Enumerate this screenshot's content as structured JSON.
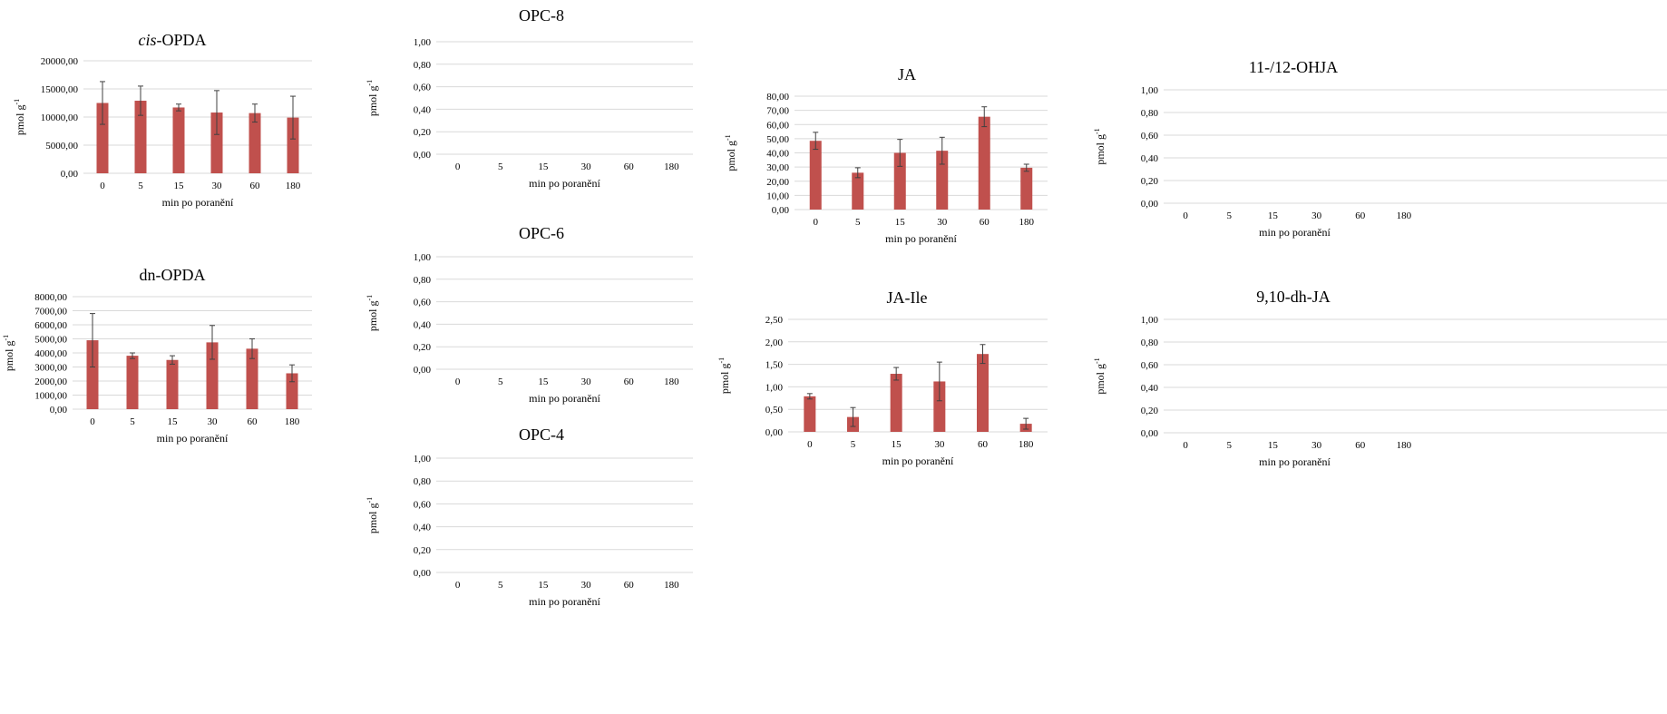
{
  "colors": {
    "bar": "#c0504d",
    "grid": "#d9d9d9",
    "error": "#404040"
  },
  "chart_data": [
    {
      "id": "cis-opda",
      "type": "bar",
      "title_italic": "cis",
      "title": "-OPDA",
      "categories": [
        "0",
        "5",
        "15",
        "30",
        "60",
        "180"
      ],
      "values": [
        12500,
        12900,
        11700,
        10800,
        10700,
        9900
      ],
      "errors": [
        3800,
        2600,
        600,
        3900,
        1600,
        3800
      ],
      "ylim": [
        0,
        20000
      ],
      "ytick_values": [
        0,
        5000,
        10000,
        15000,
        20000
      ],
      "yticks": [
        "0,00",
        "5000,00",
        "10000,00",
        "15000,00",
        "20000,00"
      ],
      "xlabel": "min po poranění",
      "ylabel_base": "pmol g",
      "ylabel_sup": "-1",
      "grid": true
    },
    {
      "id": "dn-opda",
      "type": "bar",
      "title": "dn-OPDA",
      "categories": [
        "0",
        "5",
        "15",
        "30",
        "60",
        "180"
      ],
      "values": [
        4900,
        3800,
        3500,
        4750,
        4300,
        2550
      ],
      "errors": [
        1900,
        200,
        300,
        1200,
        700,
        600
      ],
      "ylim": [
        0,
        8000
      ],
      "ytick_values": [
        0,
        1000,
        2000,
        3000,
        4000,
        5000,
        6000,
        7000,
        8000
      ],
      "yticks": [
        "0,00",
        "1000,00",
        "2000,00",
        "3000,00",
        "4000,00",
        "5000,00",
        "6000,00",
        "7000,00",
        "8000,00"
      ],
      "xlabel": "min po poranění",
      "ylabel_base": "pmol g",
      "ylabel_sup": "-1",
      "grid": true
    },
    {
      "id": "opc-8",
      "type": "bar",
      "title": "OPC-8",
      "categories": [
        "0",
        "5",
        "15",
        "30",
        "60",
        "180"
      ],
      "values": [
        0,
        0,
        0,
        0,
        0,
        0
      ],
      "ylim": [
        0,
        1
      ],
      "ytick_values": [
        0,
        0.2,
        0.4,
        0.6,
        0.8,
        1
      ],
      "yticks": [
        "0,00",
        "0,20",
        "0,40",
        "0,60",
        "0,80",
        "1,00"
      ],
      "xlabel": "min po poranění",
      "ylabel_base": "pmol g",
      "ylabel_sup": "-1",
      "grid": true
    },
    {
      "id": "opc-6",
      "type": "bar",
      "title": "OPC-6",
      "categories": [
        "0",
        "5",
        "15",
        "30",
        "60",
        "180"
      ],
      "values": [
        0,
        0,
        0,
        0,
        0,
        0
      ],
      "ylim": [
        0,
        1
      ],
      "ytick_values": [
        0,
        0.2,
        0.4,
        0.6,
        0.8,
        1
      ],
      "yticks": [
        "0,00",
        "0,20",
        "0,40",
        "0,60",
        "0,80",
        "1,00"
      ],
      "xlabel": "min po poranění",
      "ylabel_base": "pmol g",
      "ylabel_sup": "-1",
      "grid": true
    },
    {
      "id": "opc-4",
      "type": "bar",
      "title": "OPC-4",
      "categories": [
        "0",
        "5",
        "15",
        "30",
        "60",
        "180"
      ],
      "values": [
        0,
        0,
        0,
        0,
        0,
        0
      ],
      "ylim": [
        0,
        1
      ],
      "ytick_values": [
        0,
        0.2,
        0.4,
        0.6,
        0.8,
        1
      ],
      "yticks": [
        "0,00",
        "0,20",
        "0,40",
        "0,60",
        "0,80",
        "1,00"
      ],
      "xlabel": "min po poranění",
      "ylabel_base": "pmol g",
      "ylabel_sup": "-1",
      "grid": true
    },
    {
      "id": "ja",
      "type": "bar",
      "title": "JA",
      "categories": [
        "0",
        "5",
        "15",
        "30",
        "60",
        "180"
      ],
      "values": [
        48.5,
        26,
        40,
        41.5,
        65.5,
        29.5
      ],
      "errors": [
        6,
        3.5,
        9.5,
        9.5,
        7,
        2.5
      ],
      "ylim": [
        0,
        80
      ],
      "ytick_values": [
        0,
        10,
        20,
        30,
        40,
        50,
        60,
        70,
        80
      ],
      "yticks": [
        "0,00",
        "10,00",
        "20,00",
        "30,00",
        "40,00",
        "50,00",
        "60,00",
        "70,00",
        "80,00"
      ],
      "xlabel": "min po poranění",
      "ylabel_base": "pmol g",
      "ylabel_sup": "-1",
      "grid": true
    },
    {
      "id": "ja-ile",
      "type": "bar",
      "title": "JA-Ile",
      "categories": [
        "0",
        "5",
        "15",
        "30",
        "60",
        "180"
      ],
      "values": [
        0.79,
        0.33,
        1.29,
        1.12,
        1.73,
        0.18
      ],
      "errors": [
        0.06,
        0.21,
        0.14,
        0.43,
        0.21,
        0.12
      ],
      "ylim": [
        0,
        2.5
      ],
      "ytick_values": [
        0,
        0.5,
        1,
        1.5,
        2,
        2.5
      ],
      "yticks": [
        "0,00",
        "0,50",
        "1,00",
        "1,50",
        "2,00",
        "2,50"
      ],
      "xlabel": "min po poranění",
      "ylabel_base": "pmol g",
      "ylabel_sup": "-1",
      "grid": true
    },
    {
      "id": "ohja",
      "type": "bar",
      "title": "11-/12-OHJA",
      "categories": [
        "0",
        "5",
        "15",
        "30",
        "60",
        "180"
      ],
      "values": [
        0,
        0,
        0,
        0,
        0,
        0
      ],
      "ylim": [
        0,
        1
      ],
      "ytick_values": [
        0,
        0.2,
        0.4,
        0.6,
        0.8,
        1
      ],
      "yticks": [
        "0,00",
        "0,20",
        "0,40",
        "0,60",
        "0,80",
        "1,00"
      ],
      "xlabel": "min po poranění",
      "ylabel_base": "pmol g",
      "ylabel_sup": "-1",
      "grid": true
    },
    {
      "id": "dh-ja",
      "type": "bar",
      "title": "9,10-dh-JA",
      "categories": [
        "0",
        "5",
        "15",
        "30",
        "60",
        "180"
      ],
      "values": [
        0,
        0,
        0,
        0,
        0,
        0
      ],
      "ylim": [
        0,
        1
      ],
      "ytick_values": [
        0,
        0.2,
        0.4,
        0.6,
        0.8,
        1
      ],
      "yticks": [
        "0,00",
        "0,20",
        "0,40",
        "0,60",
        "0,80",
        "1,00"
      ],
      "xlabel": "min po poranění",
      "ylabel_base": "pmol g",
      "ylabel_sup": "-1",
      "grid": true
    }
  ]
}
